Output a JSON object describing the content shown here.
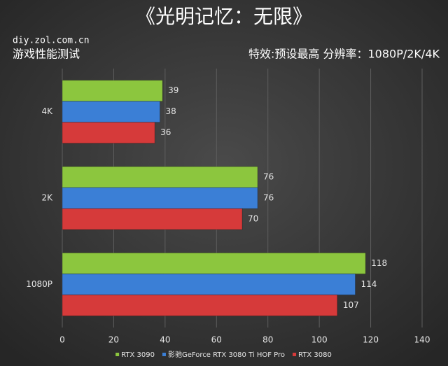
{
  "chart_data": {
    "type": "hbar",
    "title": "《光明记忆：无限》",
    "source": "diy.zol.com.cn",
    "subtitle": "游戏性能测试",
    "note": "特效:预设最高  分辨率：1080P/2K/4K",
    "categories": [
      "4K",
      "2K",
      "1080P"
    ],
    "series": [
      {
        "name": "RTX 3090",
        "color": "#8cc63e",
        "values": [
          39,
          76,
          118
        ]
      },
      {
        "name": "影驰GeForce RTX 3080 Ti HOF Pro",
        "color": "#3b7fd6",
        "values": [
          38,
          76,
          114
        ]
      },
      {
        "name": "RTX 3080",
        "color": "#d63a3a",
        "values": [
          36,
          70,
          107
        ]
      }
    ],
    "xlim": [
      0,
      140
    ],
    "xticks": [
      0,
      20,
      40,
      60,
      80,
      100,
      120,
      140
    ],
    "grid": true
  }
}
